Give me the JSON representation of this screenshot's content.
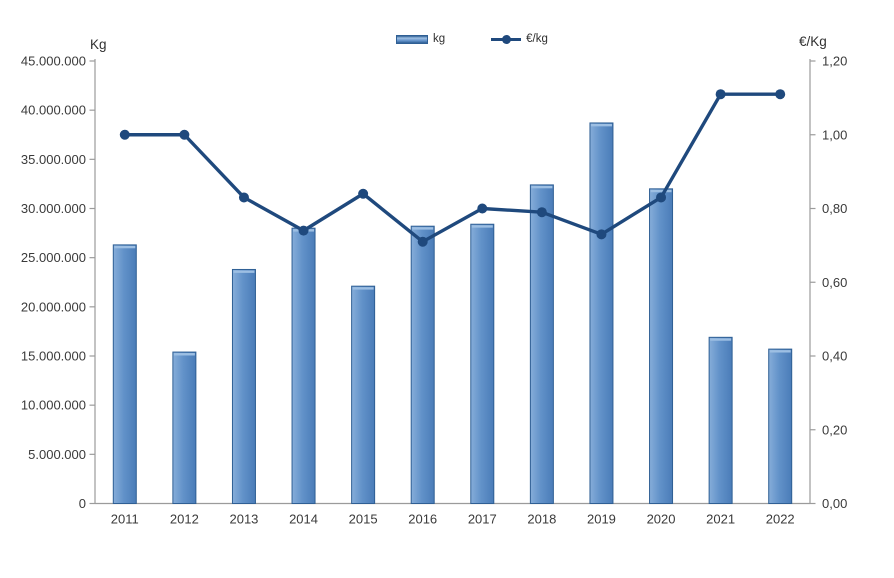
{
  "colors": {
    "bar_fill_light": "#86add9",
    "bar_fill_mid": "#6292c9",
    "bar_fill_dark": "#4a7cb8",
    "bar_border": "#2f5f94",
    "bar_top_cap": "#9dbfe3",
    "line_color": "#1f497d",
    "axis_color": "#9b9b9b",
    "text_color": "#3a3a3a"
  },
  "chart_data": {
    "type": "bar",
    "subtype": "combo bar+line, dual axis",
    "categories": [
      "2011",
      "2012",
      "2013",
      "2014",
      "2015",
      "2016",
      "2017",
      "2018",
      "2019",
      "2020",
      "2021",
      "2022"
    ],
    "series": [
      {
        "name": "kg",
        "type": "bar",
        "axis": "left",
        "values": [
          26300000,
          15400000,
          23800000,
          28000000,
          22100000,
          28200000,
          28400000,
          32400000,
          38700000,
          32000000,
          16900000,
          15700000
        ]
      },
      {
        "name": "€/kg",
        "type": "line",
        "axis": "right",
        "values": [
          1.0,
          1.0,
          0.83,
          0.74,
          0.84,
          0.71,
          0.8,
          0.79,
          0.73,
          0.83,
          1.11,
          1.11
        ]
      }
    ],
    "left_axis": {
      "title": "Kg",
      "min": 0,
      "max": 45000000,
      "step": 5000000,
      "tick_labels": [
        "0",
        "5.000.000",
        "10.000.000",
        "15.000.000",
        "20.000.000",
        "25.000.000",
        "30.000.000",
        "35.000.000",
        "40.000.000",
        "45.000.000"
      ]
    },
    "right_axis": {
      "title": "€/Kg",
      "min": 0,
      "max": 1.2,
      "step": 0.2,
      "tick_labels": [
        "0,00",
        "0,20",
        "0,40",
        "0,60",
        "0,80",
        "1,00",
        "1,20"
      ]
    },
    "grid": false,
    "legend_position": "top-center",
    "legend": [
      {
        "label": "kg",
        "swatch": "bar"
      },
      {
        "label": "€/kg",
        "swatch": "line-with-marker"
      }
    ]
  }
}
